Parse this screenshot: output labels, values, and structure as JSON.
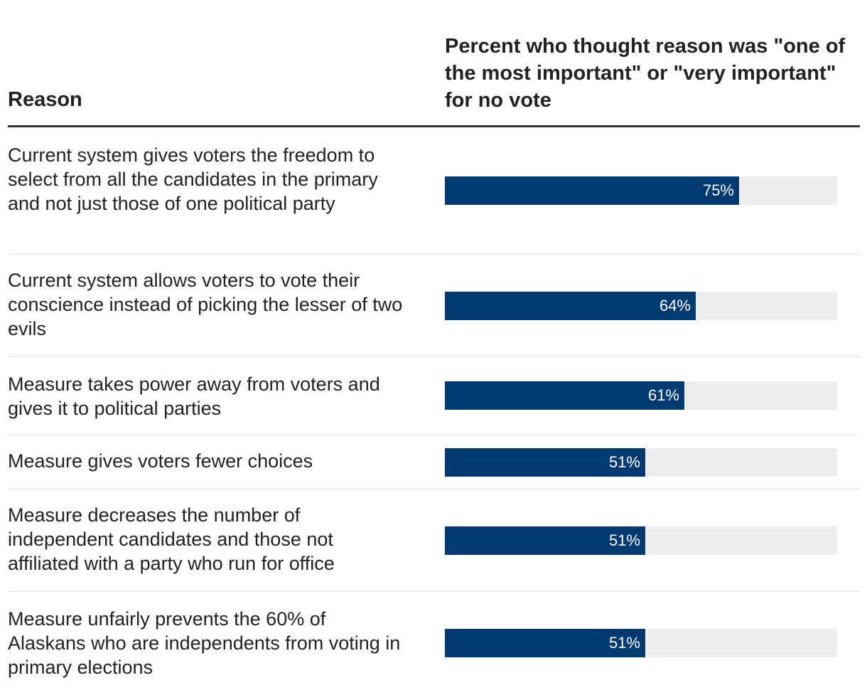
{
  "chart_data": {
    "type": "bar",
    "orientation": "horizontal",
    "title": "",
    "column_headers": {
      "reason": "Reason",
      "value": "Percent who thought reason was \"one of the most important\" or \"very important\" for no vote"
    },
    "categories": [
      "Current system gives voters the freedom to select from all the candidates in the primary and not just those of one political party",
      "Current system allows voters to vote their conscience instead of picking the lesser of two evils",
      "Measure takes power away from voters and gives it to political parties",
      "Measure gives voters fewer choices",
      "Measure decreases the number of independent candidates and those not affiliated with a party who run for office",
      "Measure unfairly prevents the 60% of Alaskans who are independents from voting in primary elections"
    ],
    "values": [
      75,
      64,
      61,
      51,
      51,
      51
    ],
    "value_labels": [
      "75%",
      "64%",
      "61%",
      "51%",
      "51%",
      "51%"
    ],
    "xlim": [
      0,
      100
    ],
    "unit": "%",
    "colors": {
      "bar": "#003a70",
      "track": "#eeeeee",
      "label": "#ffffff"
    }
  }
}
